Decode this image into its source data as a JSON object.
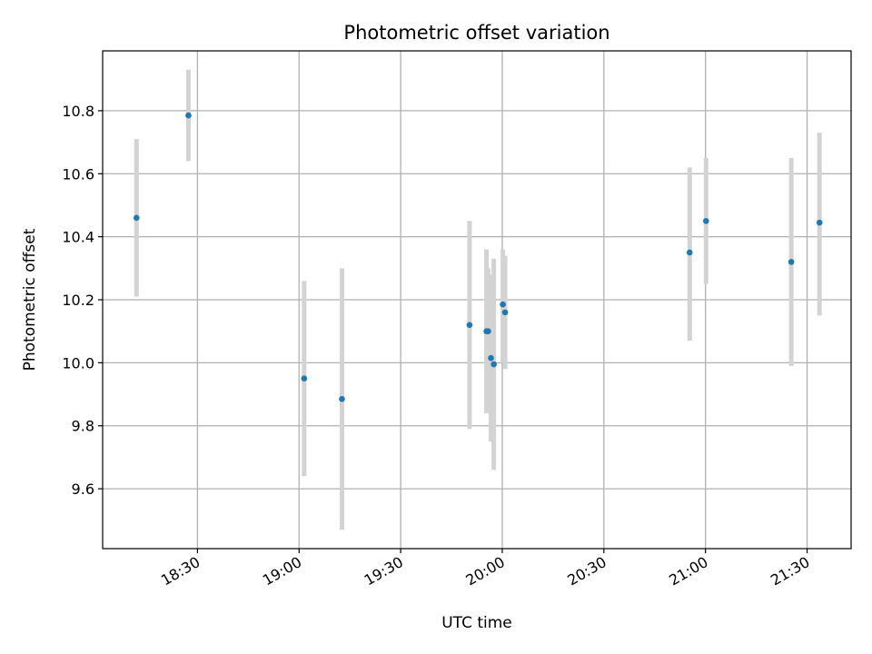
{
  "chart_data": {
    "type": "scatter",
    "title": "Photometric offset variation",
    "xlabel": "UTC time",
    "ylabel": "Photometric offset",
    "grid": true,
    "xlim": [
      "18:02",
      "21:43"
    ],
    "ylim": [
      9.41,
      10.99
    ],
    "x_ticks": [
      "18:30",
      "19:00",
      "19:30",
      "20:00",
      "20:30",
      "21:00",
      "21:30"
    ],
    "y_ticks": [
      9.6,
      9.8,
      10.0,
      10.2,
      10.4,
      10.6,
      10.8
    ],
    "point_color": "#1f77b4",
    "errorbar_color": "#d3d3d3",
    "points": [
      {
        "x": "18:12:00",
        "y": 10.46,
        "ylow": 10.21,
        "yhigh": 10.71
      },
      {
        "x": "18:27:20",
        "y": 10.785,
        "ylow": 10.64,
        "yhigh": 10.93
      },
      {
        "x": "19:01:30",
        "y": 9.95,
        "ylow": 9.64,
        "yhigh": 10.26
      },
      {
        "x": "19:12:40",
        "y": 9.885,
        "ylow": 9.47,
        "yhigh": 10.3
      },
      {
        "x": "19:50:20",
        "y": 10.12,
        "ylow": 9.79,
        "yhigh": 10.45
      },
      {
        "x": "19:55:20",
        "y": 10.1,
        "ylow": 9.84,
        "yhigh": 10.36
      },
      {
        "x": "19:55:50",
        "y": 10.1,
        "ylow": 9.91,
        "yhigh": 10.3
      },
      {
        "x": "19:56:40",
        "y": 10.015,
        "ylow": 9.75,
        "yhigh": 10.28
      },
      {
        "x": "19:57:30",
        "y": 9.995,
        "ylow": 9.66,
        "yhigh": 10.33
      },
      {
        "x": "20:00:10",
        "y": 10.185,
        "ylow": 10.0,
        "yhigh": 10.36
      },
      {
        "x": "20:00:50",
        "y": 10.16,
        "ylow": 9.98,
        "yhigh": 10.34
      },
      {
        "x": "20:55:20",
        "y": 10.35,
        "ylow": 10.07,
        "yhigh": 10.62
      },
      {
        "x": "21:00:10",
        "y": 10.45,
        "ylow": 10.25,
        "yhigh": 10.65
      },
      {
        "x": "21:25:20",
        "y": 10.32,
        "ylow": 9.99,
        "yhigh": 10.65
      },
      {
        "x": "21:33:40",
        "y": 10.445,
        "ylow": 10.15,
        "yhigh": 10.73
      }
    ]
  }
}
